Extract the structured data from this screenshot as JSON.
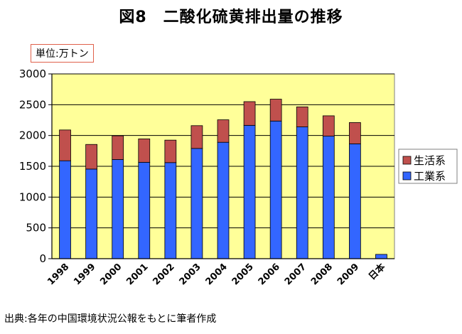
{
  "title": "図8　二酸化硫黄排出量の推移",
  "unit_label": "単位:万トン",
  "source_note": "出典:各年の中国環境状況公報をもとに筆者作成",
  "chart_data": {
    "type": "bar",
    "stacked": true,
    "categories": [
      "1998",
      "1999",
      "2000",
      "2001",
      "2002",
      "2003",
      "2004",
      "2005",
      "2006",
      "2007",
      "2008",
      "2009",
      "日本"
    ],
    "series": [
      {
        "name": "工業系",
        "color": "#3366ff",
        "values": [
          1590,
          1455,
          1610,
          1565,
          1560,
          1790,
          1890,
          2165,
          2235,
          2140,
          1990,
          1865,
          70
        ]
      },
      {
        "name": "生活系",
        "color": "#c0504d",
        "values": [
          500,
          400,
          385,
          380,
          365,
          370,
          365,
          385,
          355,
          325,
          330,
          345,
          0
        ]
      }
    ],
    "ylim": [
      0,
      3000
    ],
    "yticks": [
      0,
      500,
      1000,
      1500,
      2000,
      2500,
      3000
    ],
    "grid": true,
    "plot_background": "#ffff99",
    "legend_position": "right",
    "legend_order": [
      "生活系",
      "工業系"
    ]
  }
}
